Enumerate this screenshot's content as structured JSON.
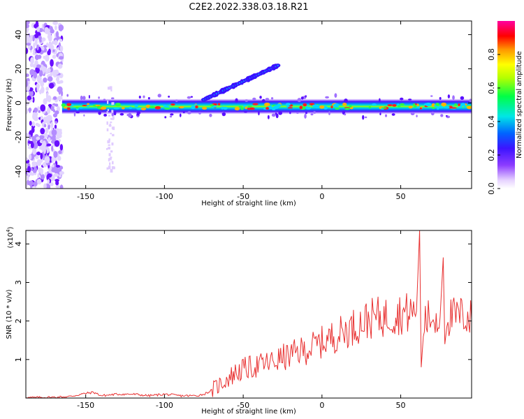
{
  "title": "C2E2.2022.338.03.18.R21",
  "chart_data": [
    {
      "type": "heatmap",
      "xlabel": "Height of straight line (km)",
      "ylabel": "Frequency (Hz)",
      "xlim": [
        -188,
        95
      ],
      "ylim": [
        -50,
        48
      ],
      "xticks": [
        "-150",
        "-100",
        "-50",
        "0",
        "50"
      ],
      "yticks": [
        "40",
        "20",
        "0",
        "-20",
        "-40"
      ],
      "grid": false,
      "colorbar": {
        "label": "Normalized spectral amplitude",
        "range": [
          0,
          1
        ],
        "ticks": [
          "0.0",
          "0.2",
          "0.4",
          "0.6",
          "0.8"
        ],
        "colormap": "rainbow (white - purple - blue - cyan - green - yellow - orange - red - magenta)"
      },
      "features": [
        {
          "x_range": [
            -188,
            -165
          ],
          "y_range": [
            -50,
            48
          ],
          "amplitude": 0.2
        },
        {
          "x_range": [
            -165,
            95
          ],
          "y_center": -2,
          "amplitude": 0.9
        },
        {
          "x_range": [
            -75,
            -28
          ],
          "y_range": [
            2,
            22
          ],
          "amplitude": 0.4
        },
        {
          "x_range": [
            -137,
            -133
          ],
          "y_range": [
            -40,
            10
          ],
          "amplitude": 0.1
        }
      ]
    },
    {
      "type": "line",
      "xlabel": "Height of straight line (km)",
      "ylabel": "SNR (10 * v/v)",
      "y_multiplier": "(x10^4)",
      "y_multiplier_base": "(x10",
      "y_multiplier_exp": "4",
      "xlim": [
        -188,
        95
      ],
      "ylim": [
        0,
        4.35
      ],
      "xticks": [
        "-150",
        "-100",
        "-50",
        "0",
        "50"
      ],
      "yticks": [
        "4",
        "3",
        "2",
        "1"
      ],
      "color": "#e83030",
      "series": [
        {
          "x": [
            -188,
            -170,
            -160,
            -150,
            -145,
            -140,
            -130,
            -120,
            -110,
            -100,
            -90,
            -80,
            -75,
            -70,
            -65,
            -60,
            -55,
            -50,
            -45,
            -40,
            -35,
            -30,
            -25,
            -20,
            -15,
            -10,
            -5,
            0,
            5,
            10,
            15,
            20,
            25,
            30,
            35,
            40,
            45,
            50,
            55,
            60,
            62,
            63,
            65,
            70,
            75,
            77,
            78,
            80,
            85,
            90,
            95
          ],
          "y": [
            0.01,
            0.02,
            0.04,
            0.12,
            0.15,
            0.06,
            0.1,
            0.1,
            0.06,
            0.1,
            0.06,
            0.06,
            0.1,
            0.2,
            0.35,
            0.5,
            0.65,
            0.75,
            0.8,
            0.85,
            0.9,
            0.95,
            1.05,
            1.1,
            1.2,
            1.25,
            1.35,
            1.45,
            1.55,
            1.65,
            1.75,
            1.85,
            1.95,
            2.05,
            2.1,
            2.1,
            2.15,
            2.2,
            2.2,
            2.25,
            4.35,
            0.8,
            2.0,
            2.1,
            2.1,
            3.65,
            1.4,
            2.1,
            2.1,
            2.15,
            2.05
          ]
        }
      ]
    }
  ]
}
